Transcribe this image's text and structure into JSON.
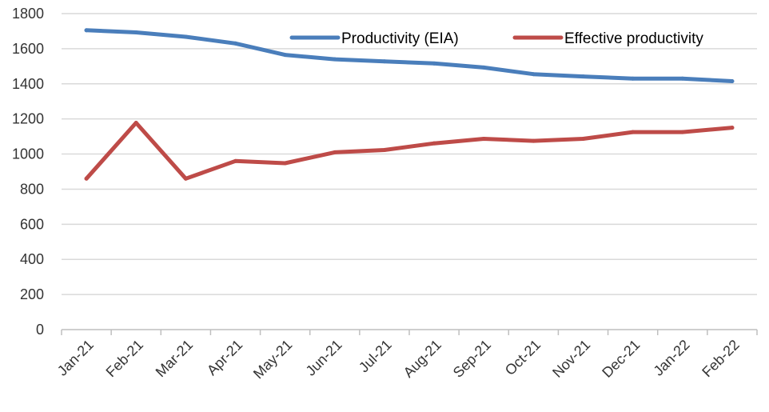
{
  "chart_data": {
    "type": "line",
    "categories": [
      "Jan-21",
      "Feb-21",
      "Mar-21",
      "Apr-21",
      "May-21",
      "Jun-21",
      "Jul-21",
      "Aug-21",
      "Sep-21",
      "Oct-21",
      "Nov-21",
      "Dec-21",
      "Jan-22",
      "Feb-22"
    ],
    "series": [
      {
        "name": "Productivity (EIA)",
        "color": "#4a7ebb",
        "values": [
          1705,
          1693,
          1668,
          1630,
          1565,
          1540,
          1528,
          1516,
          1493,
          1455,
          1442,
          1430,
          1430,
          1415
        ]
      },
      {
        "name": "Effective productivity",
        "color": "#be4b48",
        "values": [
          860,
          1178,
          860,
          960,
          948,
          1010,
          1023,
          1061,
          1087,
          1075,
          1087,
          1125,
          1125,
          1150
        ]
      }
    ],
    "ylim": [
      0,
      1800
    ],
    "yticks": [
      0,
      200,
      400,
      600,
      800,
      1000,
      1200,
      1400,
      1600,
      1800
    ],
    "grid": true,
    "legend_position": "top-right",
    "title": "",
    "xlabel": "",
    "ylabel": ""
  }
}
